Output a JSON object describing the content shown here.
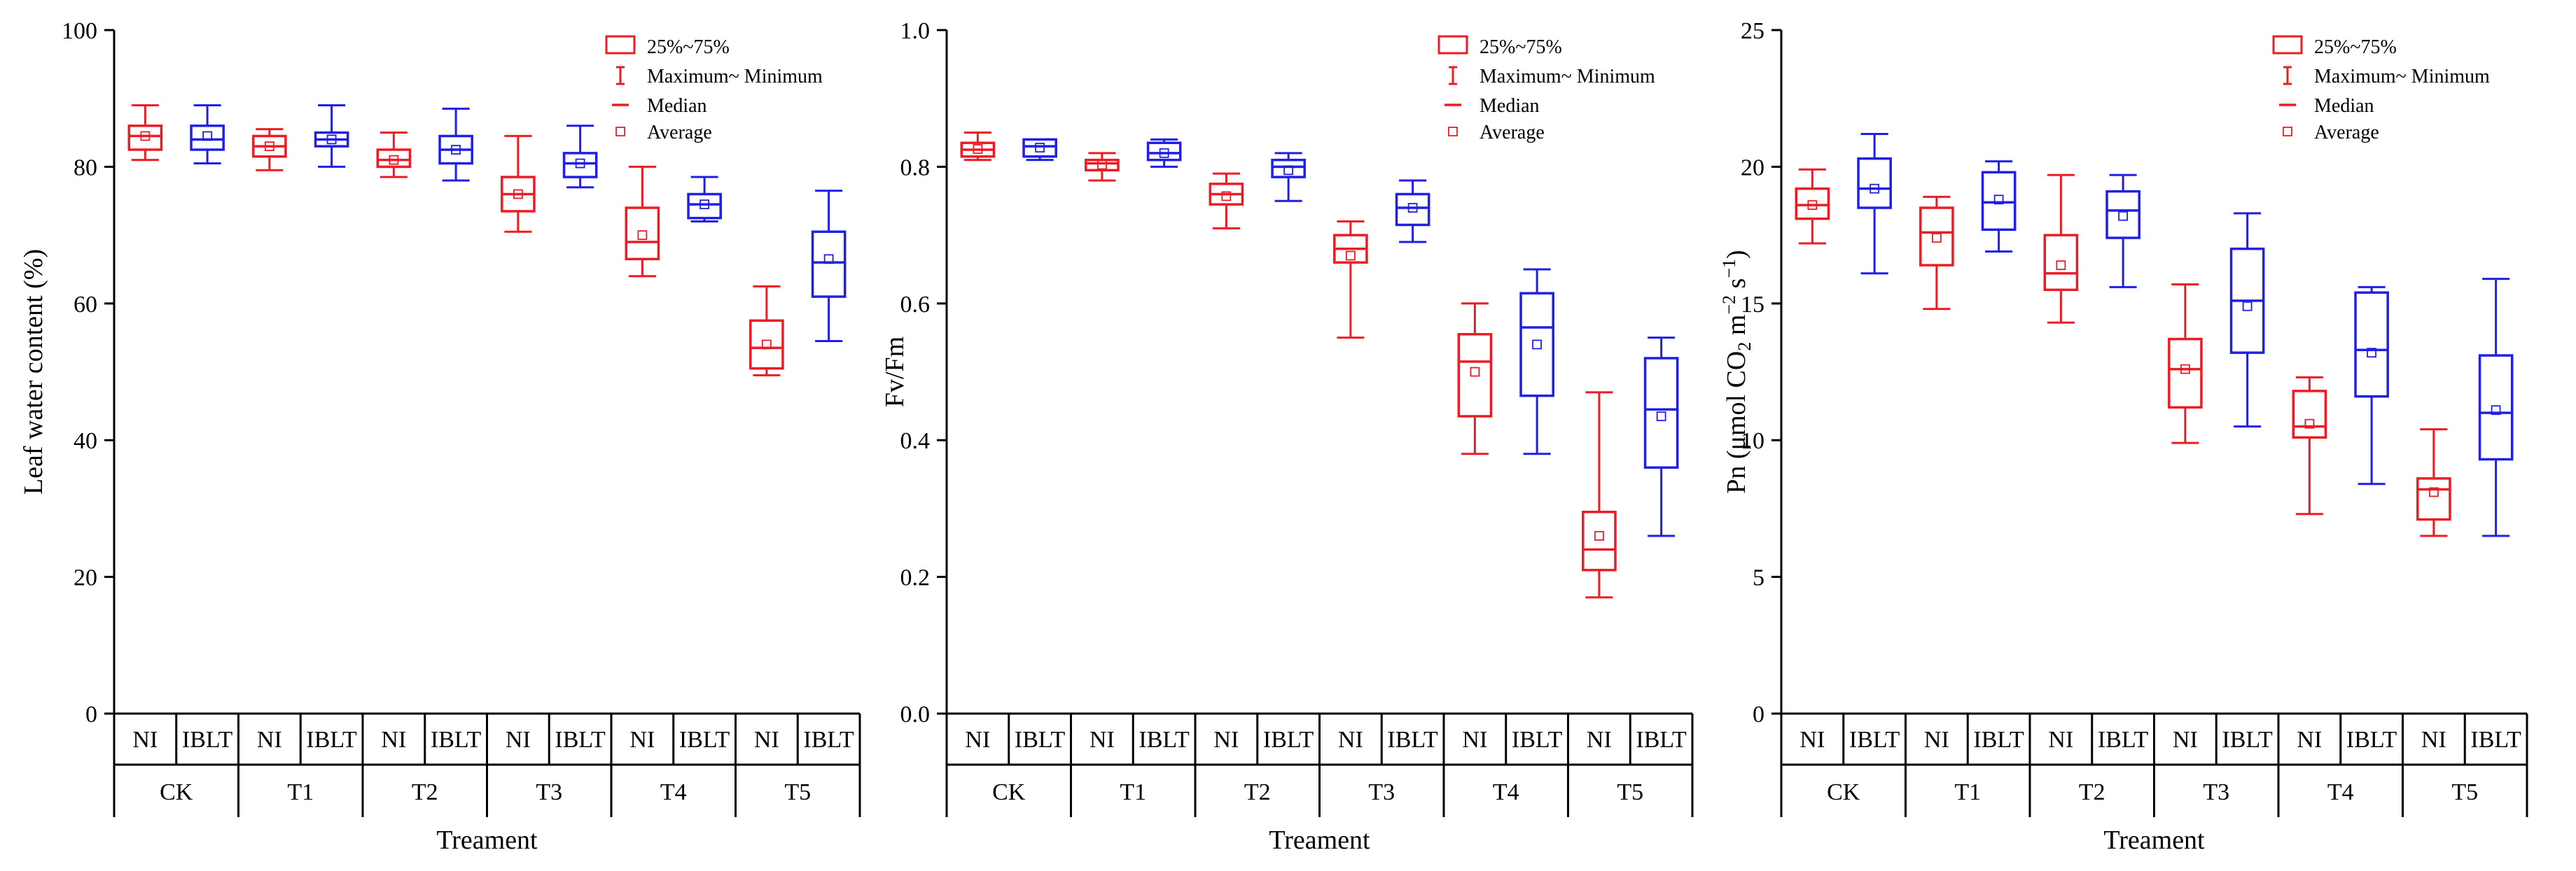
{
  "colors": {
    "ni": "#ed1c24",
    "iblt": "#1f1fe6"
  },
  "legend": [
    "25%~75%",
    "Maximum~ Minimum",
    "Median",
    "Average"
  ],
  "chart_data": [
    {
      "type": "box",
      "title": "",
      "ylabel": "Leaf water content (%)",
      "ylabel_parts": [
        "Leaf water content (%)"
      ],
      "xlabel": "Treament",
      "ylim": [
        0,
        100
      ],
      "yticks": [
        "0",
        "20",
        "40",
        "60",
        "80",
        "100"
      ],
      "groups": [
        "CK",
        "T1",
        "T2",
        "T3",
        "T4",
        "T5"
      ],
      "subgroups": [
        "NI",
        "IBLT"
      ],
      "boxes": [
        {
          "group": "CK",
          "sub": "NI",
          "min": 81,
          "q1": 82.5,
          "median": 84.5,
          "q3": 86,
          "max": 89,
          "mean": 84.5
        },
        {
          "group": "CK",
          "sub": "IBLT",
          "min": 80.5,
          "q1": 82.5,
          "median": 84,
          "q3": 86,
          "max": 89,
          "mean": 84.5
        },
        {
          "group": "T1",
          "sub": "NI",
          "min": 79.5,
          "q1": 81.5,
          "median": 83,
          "q3": 84.5,
          "max": 85.5,
          "mean": 83
        },
        {
          "group": "T1",
          "sub": "IBLT",
          "min": 80,
          "q1": 83,
          "median": 84,
          "q3": 85,
          "max": 89,
          "mean": 84
        },
        {
          "group": "T2",
          "sub": "NI",
          "min": 78.5,
          "q1": 80,
          "median": 81,
          "q3": 82.5,
          "max": 85,
          "mean": 81
        },
        {
          "group": "T2",
          "sub": "IBLT",
          "min": 78,
          "q1": 80.5,
          "median": 82.5,
          "q3": 84.5,
          "max": 88.5,
          "mean": 82.5
        },
        {
          "group": "T3",
          "sub": "NI",
          "min": 70.5,
          "q1": 73.5,
          "median": 76,
          "q3": 78.5,
          "max": 84.5,
          "mean": 76
        },
        {
          "group": "T3",
          "sub": "IBLT",
          "min": 77,
          "q1": 78.5,
          "median": 80.5,
          "q3": 82,
          "max": 86,
          "mean": 80.5
        },
        {
          "group": "T4",
          "sub": "NI",
          "min": 64,
          "q1": 66.5,
          "median": 69,
          "q3": 74,
          "max": 80,
          "mean": 70
        },
        {
          "group": "T4",
          "sub": "IBLT",
          "min": 72,
          "q1": 72.5,
          "median": 74.5,
          "q3": 76,
          "max": 78.5,
          "mean": 74.5
        },
        {
          "group": "T5",
          "sub": "NI",
          "min": 49.5,
          "q1": 50.5,
          "median": 53.5,
          "q3": 57.5,
          "max": 62.5,
          "mean": 54
        },
        {
          "group": "T5",
          "sub": "IBLT",
          "min": 54.5,
          "q1": 61,
          "median": 66,
          "q3": 70.5,
          "max": 76.5,
          "mean": 66.5
        }
      ]
    },
    {
      "type": "box",
      "title": "",
      "ylabel": "Fv/Fm",
      "ylabel_parts": [
        "Fv/Fm"
      ],
      "xlabel": "Treament",
      "ylim": [
        0,
        1
      ],
      "yticks": [
        "0.0",
        "0.2",
        "0.4",
        "0.6",
        "0.8",
        "1.0"
      ],
      "groups": [
        "CK",
        "T1",
        "T2",
        "T3",
        "T4",
        "T5"
      ],
      "subgroups": [
        "NI",
        "IBLT"
      ],
      "boxes": [
        {
          "group": "CK",
          "sub": "NI",
          "min": 0.81,
          "q1": 0.815,
          "median": 0.825,
          "q3": 0.835,
          "max": 0.85,
          "mean": 0.826
        },
        {
          "group": "CK",
          "sub": "IBLT",
          "min": 0.81,
          "q1": 0.815,
          "median": 0.83,
          "q3": 0.84,
          "max": 0.84,
          "mean": 0.828
        },
        {
          "group": "T1",
          "sub": "NI",
          "min": 0.78,
          "q1": 0.795,
          "median": 0.805,
          "q3": 0.81,
          "max": 0.82,
          "mean": 0.803
        },
        {
          "group": "T1",
          "sub": "IBLT",
          "min": 0.8,
          "q1": 0.81,
          "median": 0.82,
          "q3": 0.835,
          "max": 0.84,
          "mean": 0.82
        },
        {
          "group": "T2",
          "sub": "NI",
          "min": 0.71,
          "q1": 0.745,
          "median": 0.76,
          "q3": 0.775,
          "max": 0.79,
          "mean": 0.757
        },
        {
          "group": "T2",
          "sub": "IBLT",
          "min": 0.75,
          "q1": 0.785,
          "median": 0.8,
          "q3": 0.81,
          "max": 0.82,
          "mean": 0.795
        },
        {
          "group": "T3",
          "sub": "NI",
          "min": 0.55,
          "q1": 0.66,
          "median": 0.68,
          "q3": 0.7,
          "max": 0.72,
          "mean": 0.67
        },
        {
          "group": "T3",
          "sub": "IBLT",
          "min": 0.69,
          "q1": 0.715,
          "median": 0.74,
          "q3": 0.76,
          "max": 0.78,
          "mean": 0.74
        },
        {
          "group": "T4",
          "sub": "NI",
          "min": 0.38,
          "q1": 0.435,
          "median": 0.515,
          "q3": 0.555,
          "max": 0.6,
          "mean": 0.5
        },
        {
          "group": "T4",
          "sub": "IBLT",
          "min": 0.38,
          "q1": 0.465,
          "median": 0.565,
          "q3": 0.615,
          "max": 0.65,
          "mean": 0.54
        },
        {
          "group": "T5",
          "sub": "NI",
          "min": 0.17,
          "q1": 0.21,
          "median": 0.24,
          "q3": 0.295,
          "max": 0.47,
          "mean": 0.26
        },
        {
          "group": "T5",
          "sub": "IBLT",
          "min": 0.26,
          "q1": 0.36,
          "median": 0.445,
          "q3": 0.52,
          "max": 0.55,
          "mean": 0.435
        }
      ]
    },
    {
      "type": "box",
      "title": "",
      "ylabel": "Pn (μmol CO2 m−2 s−1)",
      "ylabel_parts": [
        "Pn (μmol CO",
        "2",
        " m",
        "−2",
        " s",
        "−1",
        ")"
      ],
      "xlabel": "Treament",
      "ylim": [
        0,
        25
      ],
      "yticks": [
        "0",
        "5",
        "10",
        "15",
        "20",
        "25"
      ],
      "groups": [
        "CK",
        "T1",
        "T2",
        "T3",
        "T4",
        "T5"
      ],
      "subgroups": [
        "NI",
        "IBLT"
      ],
      "boxes": [
        {
          "group": "CK",
          "sub": "NI",
          "min": 17.2,
          "q1": 18.1,
          "median": 18.6,
          "q3": 19.2,
          "max": 19.9,
          "mean": 18.6
        },
        {
          "group": "CK",
          "sub": "IBLT",
          "min": 16.1,
          "q1": 18.5,
          "median": 19.2,
          "q3": 20.3,
          "max": 21.2,
          "mean": 19.2
        },
        {
          "group": "T1",
          "sub": "NI",
          "min": 14.8,
          "q1": 16.4,
          "median": 17.6,
          "q3": 18.5,
          "max": 18.9,
          "mean": 17.4
        },
        {
          "group": "T1",
          "sub": "IBLT",
          "min": 16.9,
          "q1": 17.7,
          "median": 18.7,
          "q3": 19.8,
          "max": 20.2,
          "mean": 18.8
        },
        {
          "group": "T2",
          "sub": "NI",
          "min": 14.3,
          "q1": 15.5,
          "median": 16.1,
          "q3": 17.5,
          "max": 19.7,
          "mean": 16.4
        },
        {
          "group": "T2",
          "sub": "IBLT",
          "min": 15.6,
          "q1": 17.4,
          "median": 18.4,
          "q3": 19.1,
          "max": 19.7,
          "mean": 18.2
        },
        {
          "group": "T3",
          "sub": "NI",
          "min": 9.9,
          "q1": 11.2,
          "median": 12.6,
          "q3": 13.7,
          "max": 15.7,
          "mean": 12.6
        },
        {
          "group": "T3",
          "sub": "IBLT",
          "min": 10.5,
          "q1": 13.2,
          "median": 15.1,
          "q3": 17.0,
          "max": 18.3,
          "mean": 14.9
        },
        {
          "group": "T4",
          "sub": "NI",
          "min": 7.3,
          "q1": 10.1,
          "median": 10.5,
          "q3": 11.8,
          "max": 12.3,
          "mean": 10.6
        },
        {
          "group": "T4",
          "sub": "IBLT",
          "min": 8.4,
          "q1": 11.6,
          "median": 13.3,
          "q3": 15.4,
          "max": 15.6,
          "mean": 13.2
        },
        {
          "group": "T5",
          "sub": "NI",
          "min": 6.5,
          "q1": 7.1,
          "median": 8.2,
          "q3": 8.6,
          "max": 10.4,
          "mean": 8.1
        },
        {
          "group": "T5",
          "sub": "IBLT",
          "min": 6.5,
          "q1": 9.3,
          "median": 11.0,
          "q3": 13.1,
          "max": 15.9,
          "mean": 11.1
        }
      ]
    }
  ]
}
